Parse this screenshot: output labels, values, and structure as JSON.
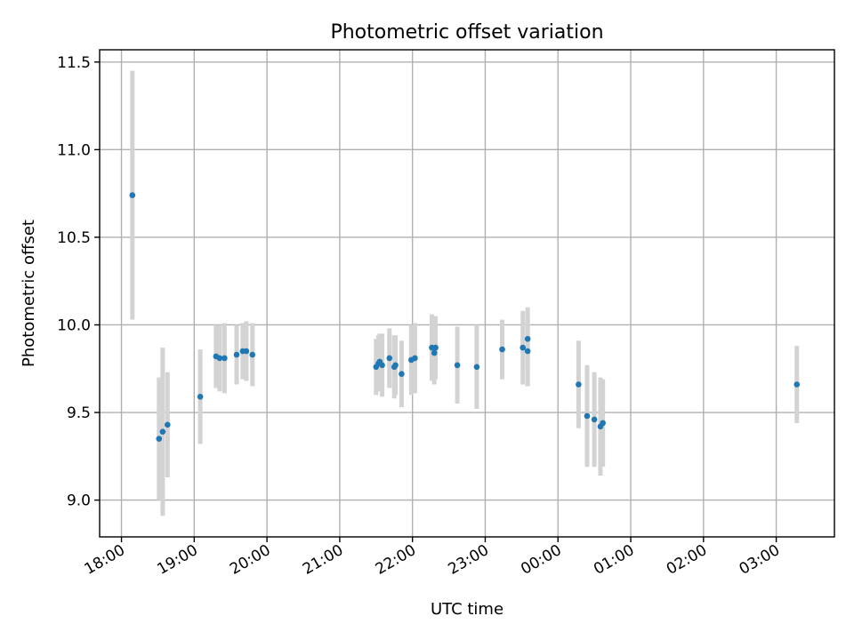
{
  "chart_data": {
    "type": "scatter",
    "title": "Photometric offset variation",
    "xlabel": "UTC time",
    "ylabel": "Photometric offset",
    "x_unit": "UTC time (hours after 18:00)",
    "xlim": [
      -0.3,
      9.8
    ],
    "ylim": [
      8.79,
      11.57
    ],
    "xtick_labels": [
      "18:00",
      "19:00",
      "20:00",
      "21:00",
      "22:00",
      "23:00",
      "00:00",
      "01:00",
      "02:00",
      "03:00"
    ],
    "yticks": [
      9.0,
      9.5,
      10.0,
      10.5,
      11.0,
      11.5
    ],
    "ytick_labels": [
      "9.0",
      "9.5",
      "10.0",
      "10.5",
      "11.0",
      "11.5"
    ],
    "grid": true,
    "marker_color": "#1f77b4",
    "errorbar_color": "#d3d3d3",
    "points": [
      {
        "time": "18:09",
        "y": 10.74,
        "err": 0.71
      },
      {
        "time": "18:31",
        "y": 9.35,
        "err": 0.35
      },
      {
        "time": "18:34",
        "y": 9.39,
        "err": 0.48
      },
      {
        "time": "18:38",
        "y": 9.43,
        "err": 0.3
      },
      {
        "time": "19:05",
        "y": 9.59,
        "err": 0.27
      },
      {
        "time": "19:18",
        "y": 9.82,
        "err": 0.18
      },
      {
        "time": "19:21",
        "y": 9.81,
        "err": 0.19
      },
      {
        "time": "19:25",
        "y": 9.81,
        "err": 0.2
      },
      {
        "time": "19:35",
        "y": 9.83,
        "err": 0.17
      },
      {
        "time": "19:40",
        "y": 9.85,
        "err": 0.16
      },
      {
        "time": "19:43",
        "y": 9.85,
        "err": 0.17
      },
      {
        "time": "19:48",
        "y": 9.83,
        "err": 0.18
      },
      {
        "time": "21:30",
        "y": 9.76,
        "err": 0.16
      },
      {
        "time": "21:32",
        "y": 9.78,
        "err": 0.16
      },
      {
        "time": "21:33",
        "y": 9.79,
        "err": 0.16
      },
      {
        "time": "21:35",
        "y": 9.77,
        "err": 0.18
      },
      {
        "time": "21:41",
        "y": 9.81,
        "err": 0.17
      },
      {
        "time": "21:45",
        "y": 9.76,
        "err": 0.18
      },
      {
        "time": "21:46",
        "y": 9.77,
        "err": 0.17
      },
      {
        "time": "21:51",
        "y": 9.72,
        "err": 0.19
      },
      {
        "time": "21:59",
        "y": 9.8,
        "err": 0.2
      },
      {
        "time": "22:02",
        "y": 9.81,
        "err": 0.2
      },
      {
        "time": "22:16",
        "y": 9.87,
        "err": 0.19
      },
      {
        "time": "22:18",
        "y": 9.84,
        "err": 0.18
      },
      {
        "time": "22:19",
        "y": 9.87,
        "err": 0.18
      },
      {
        "time": "22:37",
        "y": 9.77,
        "err": 0.22
      },
      {
        "time": "22:53",
        "y": 9.76,
        "err": 0.24
      },
      {
        "time": "23:14",
        "y": 9.86,
        "err": 0.17
      },
      {
        "time": "23:31",
        "y": 9.87,
        "err": 0.21
      },
      {
        "time": "23:35",
        "y": 9.85,
        "err": 0.2
      },
      {
        "time": "23:35",
        "y": 9.92,
        "err": 0.18
      },
      {
        "time": "00:17",
        "y": 9.66,
        "err": 0.25
      },
      {
        "time": "00:24",
        "y": 9.48,
        "err": 0.29
      },
      {
        "time": "00:30",
        "y": 9.46,
        "err": 0.27
      },
      {
        "time": "00:35",
        "y": 9.42,
        "err": 0.28
      },
      {
        "time": "00:37",
        "y": 9.44,
        "err": 0.25
      },
      {
        "time": "03:17",
        "y": 9.66,
        "err": 0.22
      }
    ]
  }
}
